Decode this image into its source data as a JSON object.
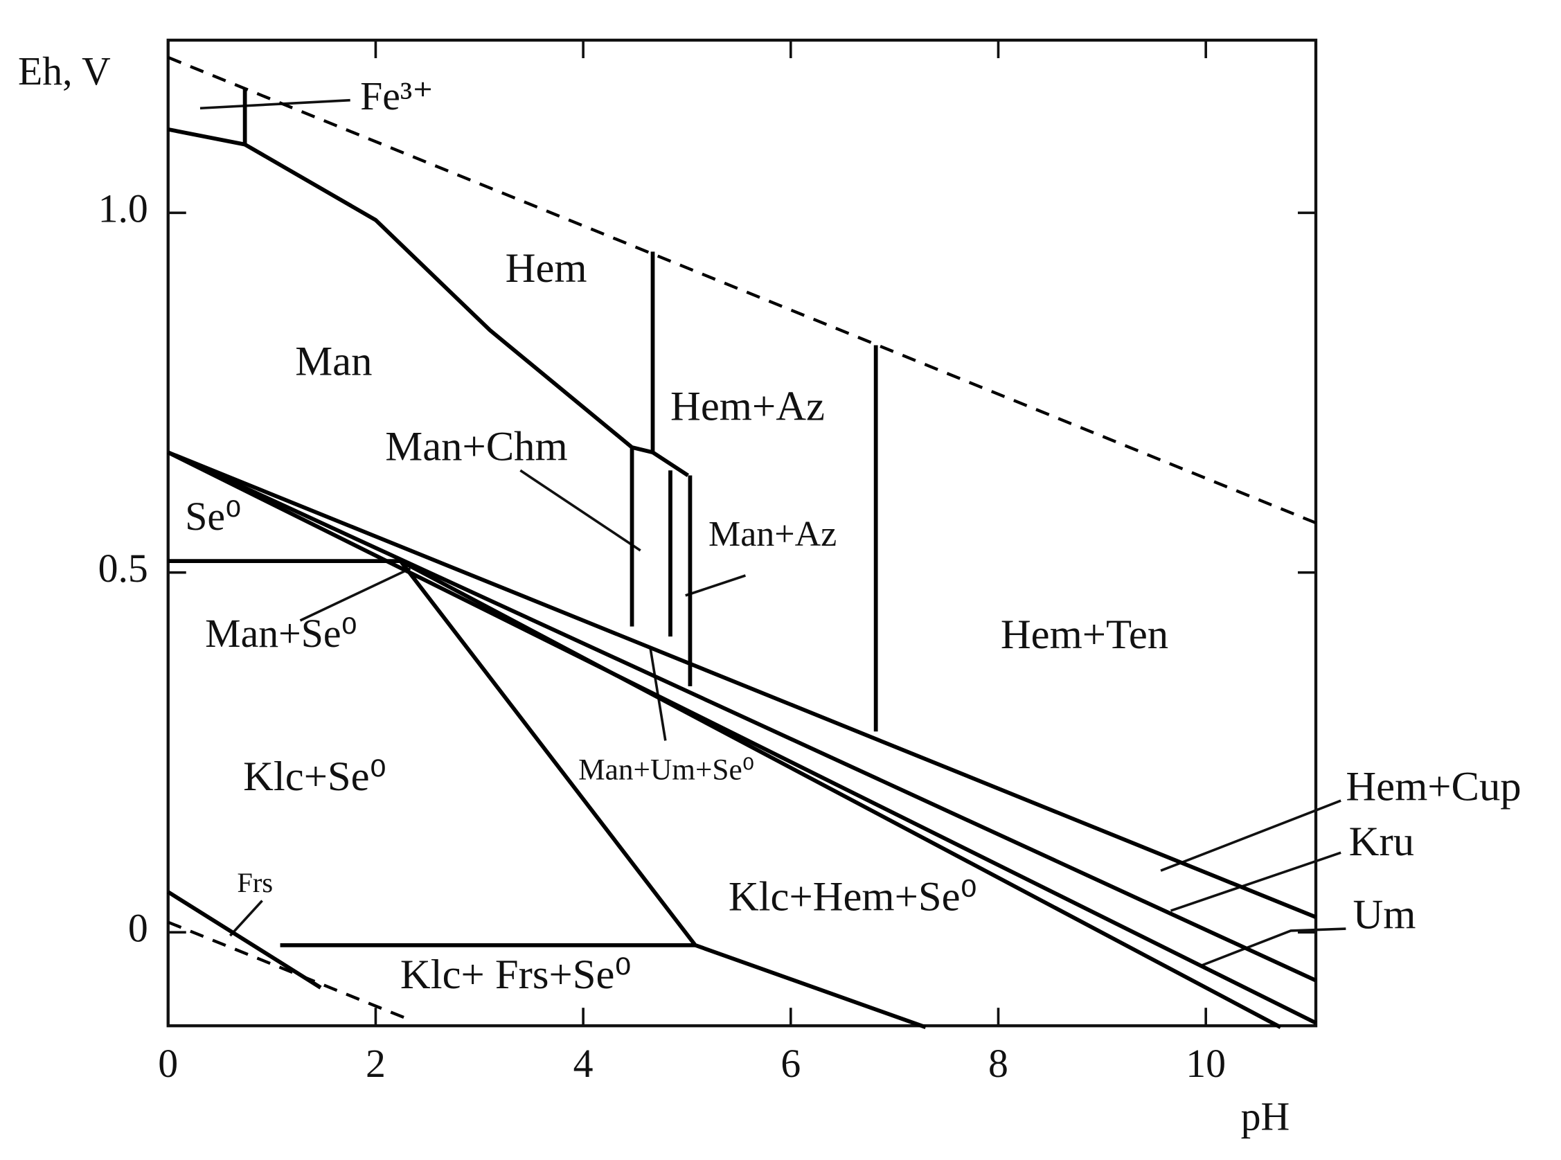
{
  "chart_data": {
    "type": "line",
    "x_label": "pH",
    "y_label": "Eh, V",
    "xlim": [
      0,
      11.06
    ],
    "ylim": [
      -0.13,
      1.24
    ],
    "xticks": [
      0,
      2,
      4,
      6,
      8,
      10
    ],
    "yticks": [
      0,
      0.5,
      {
        "value": 1,
        "label": "1.0"
      }
    ],
    "series": [
      {
        "color": "#000",
        "dashed": true,
        "x": [
          0,
          11.06
        ],
        "values": [
          1.216,
          0.569
        ]
      },
      {
        "color": "#000",
        "dashed": true,
        "x": [
          0,
          2.3
        ],
        "values": [
          0.014,
          -0.12
        ]
      },
      {
        "color": "#000",
        "dashed": false,
        "x": [
          0,
          0.74,
          0.74
        ],
        "values": [
          1.116,
          1.095,
          1.174
        ]
      },
      {
        "color": "#000",
        "dashed": false,
        "x": [
          0.74,
          2.0,
          3.1,
          4.47,
          4.67,
          5.01
        ],
        "values": [
          1.095,
          0.99,
          0.837,
          0.674,
          0.667,
          0.635
        ]
      },
      {
        "color": "#000",
        "dashed": false,
        "x": [
          4.67,
          4.67
        ],
        "values": [
          0.667,
          0.946
        ]
      },
      {
        "color": "#000",
        "dashed": false,
        "x": [
          6.82,
          6.82
        ],
        "values": [
          0.279,
          0.816
        ]
      },
      {
        "color": "#000",
        "dashed": false,
        "x": [
          4.47,
          4.47
        ],
        "values": [
          0.674,
          0.425
        ]
      },
      {
        "color": "#000",
        "dashed": false,
        "x": [
          4.84,
          4.84
        ],
        "values": [
          0.642,
          0.411
        ]
      },
      {
        "color": "#000",
        "dashed": false,
        "x": [
          5.03,
          5.03
        ],
        "values": [
          0.635,
          0.342
        ]
      },
      {
        "color": "#000",
        "dashed": false,
        "x": [
          0,
          2.24
        ],
        "values": [
          0.516,
          0.516
        ]
      },
      {
        "color": "#000",
        "dashed": false,
        "x": [
          0,
          11.06
        ],
        "values": [
          0.667,
          0.021
        ]
      },
      {
        "color": "#000",
        "dashed": false,
        "x": [
          0,
          11.06
        ],
        "values": [
          0.667,
          -0.067
        ]
      },
      {
        "color": "#000",
        "dashed": false,
        "x": [
          0,
          11.06
        ],
        "values": [
          0.667,
          -0.126
        ]
      },
      {
        "color": "#000",
        "dashed": false,
        "x": [
          2.24,
          10.72
        ],
        "values": [
          0.516,
          -0.132
        ]
      },
      {
        "color": "#000",
        "dashed": false,
        "x": [
          2.24,
          5.08,
          7.3
        ],
        "values": [
          0.516,
          -0.018,
          -0.132
        ]
      },
      {
        "color": "#000",
        "dashed": false,
        "x": [
          1.08,
          5.08
        ],
        "values": [
          -0.018,
          -0.018
        ]
      },
      {
        "color": "#000",
        "dashed": false,
        "x": [
          0,
          1.47
        ],
        "values": [
          0.056,
          -0.077
        ]
      }
    ],
    "annotations": [
      "Fe³⁺",
      "Hem",
      "Man",
      "Hem+Az",
      "Man+Chm",
      "Man+Az",
      "Se⁰",
      "Man+Se⁰",
      "Hem+Ten",
      "Man+Um+Se⁰",
      "Klc+Se⁰",
      "Hem+Cup",
      "Kru",
      "Frs",
      "Klc+Hem+Se⁰",
      "Um",
      "Klc+ Frs+Se⁰"
    ]
  }
}
